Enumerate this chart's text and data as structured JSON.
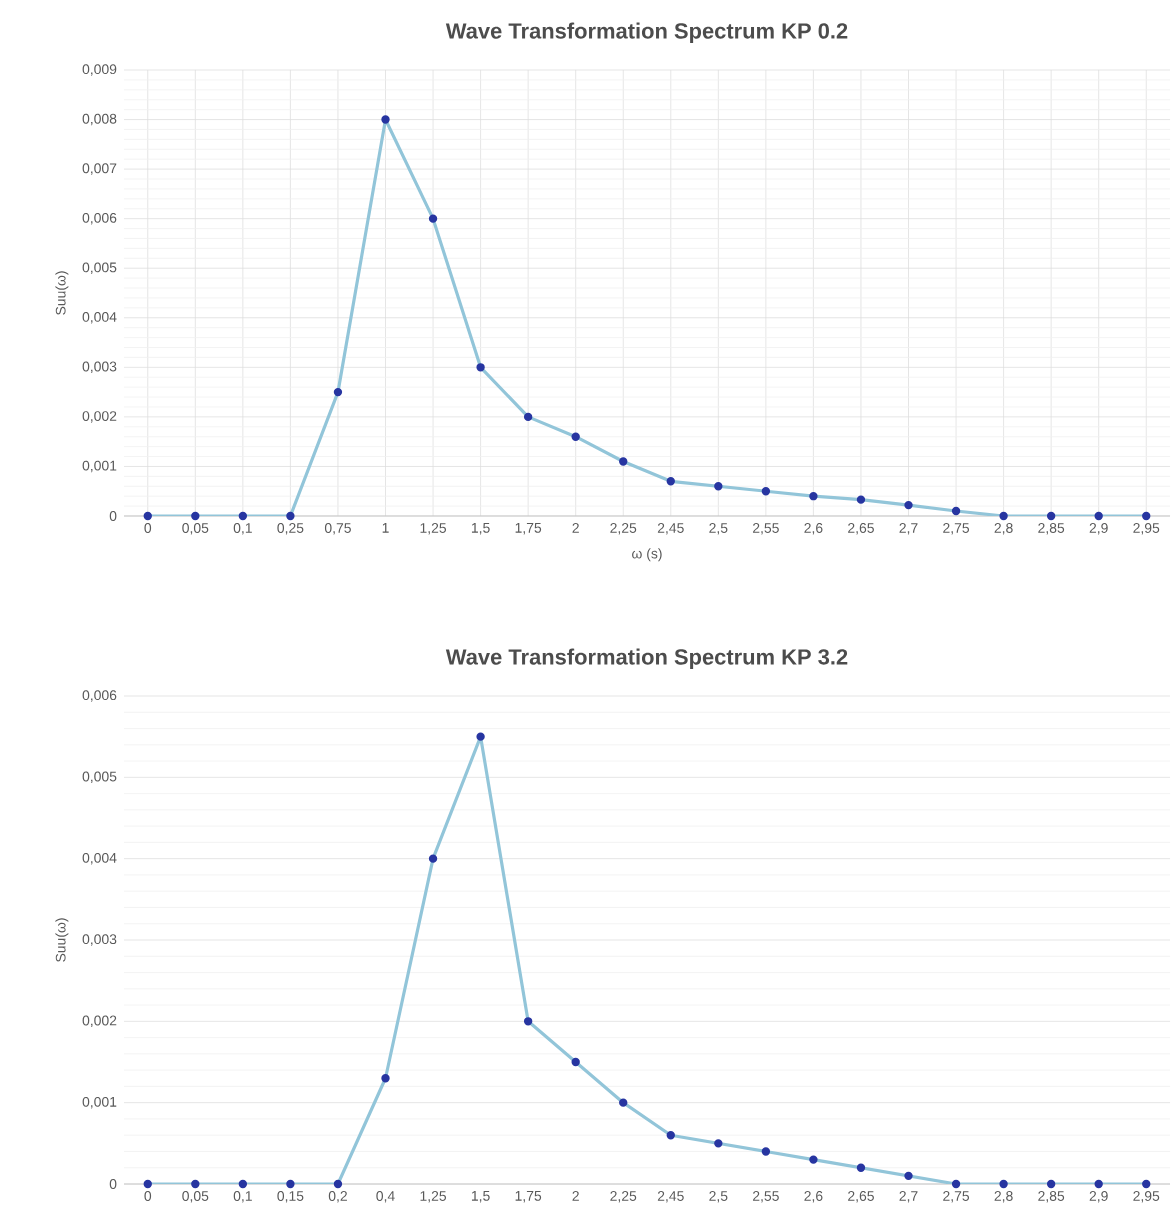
{
  "chart_data": [
    {
      "type": "line",
      "title": "Wave Transformation Spectrum KP 0.2",
      "xlabel": "ω (s)",
      "ylabel": "Suu(ω)",
      "categories": [
        "0",
        "0,05",
        "0,1",
        "0,25",
        "0,75",
        "1",
        "1,25",
        "1,5",
        "1,75",
        "2",
        "2,25",
        "2,45",
        "2,5",
        "2,55",
        "2,6",
        "2,65",
        "2,7",
        "2,75",
        "2,8",
        "2,85",
        "2,9",
        "2,95"
      ],
      "series": [
        {
          "color": "#92c5d9",
          "values": [
            0,
            0,
            0,
            0,
            0.0025,
            0.008,
            0.006,
            0.003,
            0.002,
            0.0016,
            0.0011,
            0.0007,
            0.0006,
            0.0005,
            0.0004,
            0.00033,
            0.00022,
            0.0001,
            0,
            0,
            0,
            0
          ]
        }
      ],
      "ylim": [
        0,
        0.009
      ],
      "yticks": [
        0,
        {
          "value": 0.001,
          "label": "0,001"
        },
        {
          "value": 0.002,
          "label": "0,002"
        },
        {
          "value": 0.003,
          "label": "0,003"
        },
        {
          "value": 0.004,
          "label": "0,004"
        },
        {
          "value": 0.005,
          "label": "0,005"
        },
        {
          "value": 0.006,
          "label": "0,006"
        },
        {
          "value": 0.007,
          "label": "0,007"
        },
        {
          "value": 0.008,
          "label": "0,008"
        },
        {
          "value": 0.009,
          "label": "0,009"
        }
      ],
      "grid": true,
      "marker": "circle",
      "line_style": "solid"
    },
    {
      "type": "line",
      "title": "Wave Transformation Spectrum KP 3.2",
      "ylabel": "Suu(ω)",
      "categories": [
        "0",
        "0,05",
        "0,1",
        "0,15",
        "0,2",
        "0,4",
        "1,25",
        "1,5",
        "1,75",
        "2",
        "2,25",
        "2,45",
        "2,5",
        "2,55",
        "2,6",
        "2,65",
        "2,7",
        "2,75",
        "2,8",
        "2,85",
        "2,9",
        "2,95"
      ],
      "series": [
        {
          "color": "#92c5d9",
          "values": [
            0,
            0,
            0,
            0,
            0,
            0.0013,
            0.004,
            0.0055,
            0.002,
            0.0015,
            0.001,
            0.0006,
            0.0005,
            0.0004,
            0.0003,
            0.0002,
            0.0001,
            0,
            0,
            0,
            0,
            0
          ]
        }
      ],
      "ylim": [
        0,
        0.006
      ],
      "yticks": [
        0,
        {
          "value": 0.001,
          "label": "0,001"
        },
        {
          "value": 0.002,
          "label": "0,002"
        },
        {
          "value": 0.003,
          "label": "0,003"
        },
        {
          "value": 0.004,
          "label": "0,004"
        },
        {
          "value": 0.005,
          "label": "0,005"
        },
        {
          "value": 0.006,
          "label": "0,006"
        }
      ],
      "grid": "y",
      "marker": "circle",
      "line_style": "solid"
    }
  ]
}
